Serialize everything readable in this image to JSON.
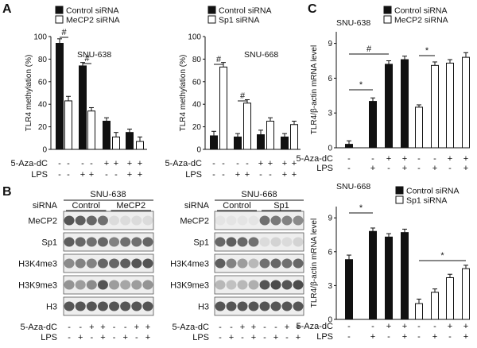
{
  "panel_labels": {
    "a": "A",
    "b": "B",
    "c": "C"
  },
  "colors": {
    "series1": "#111111",
    "series2": "#ffffff",
    "blot_band": "#3a3a3a",
    "blot_bg": "#eeeeee"
  },
  "chart_data": [
    {
      "id": "a_left",
      "type": "bar",
      "ylabel": "TLR4 methylation (%)",
      "ylim": [
        0,
        100
      ],
      "yticks": [
        "0",
        "20",
        "40",
        "60",
        "80",
        "100"
      ],
      "annotation": "SNU-638",
      "legend": [
        "Control siRNA",
        "MeCP2 siRNA"
      ],
      "series": [
        {
          "name": "Control siRNA",
          "values": [
            94,
            74,
            25,
            15
          ],
          "errors": [
            4,
            3,
            3,
            3
          ]
        },
        {
          "name": "MeCP2 siRNA",
          "values": [
            43,
            34,
            11,
            7
          ],
          "errors": [
            4,
            3,
            4,
            4
          ]
        }
      ],
      "row_labels": [
        "5-Aza-dC",
        "LPS"
      ],
      "signs": [
        [
          "-",
          "-",
          "-",
          "-",
          "+",
          "+",
          "+",
          "+"
        ],
        [
          "-",
          "-",
          "+",
          "+",
          "-",
          "-",
          "+",
          "+"
        ]
      ],
      "significance": [
        "#",
        "#"
      ]
    },
    {
      "id": "a_right",
      "type": "bar",
      "ylabel": "TLR4 methylation (%)",
      "ylim": [
        0,
        100
      ],
      "yticks": [
        "0",
        "20",
        "40",
        "60",
        "80",
        "100"
      ],
      "annotation": "SNU-668",
      "legend": [
        "Control siRNA",
        "Sp1 siRNA"
      ],
      "series": [
        {
          "name": "Control siRNA",
          "values": [
            12,
            11,
            13,
            11
          ],
          "errors": [
            4,
            3,
            4,
            3
          ]
        },
        {
          "name": "Sp1 siRNA",
          "values": [
            73,
            41,
            25,
            22
          ],
          "errors": [
            4,
            3,
            3,
            3
          ]
        }
      ],
      "row_labels": [
        "5-Aza-dC",
        "LPS"
      ],
      "signs": [
        [
          "-",
          "-",
          "-",
          "-",
          "+",
          "+",
          "+",
          "+"
        ],
        [
          "-",
          "-",
          "+",
          "+",
          "-",
          "-",
          "+",
          "+"
        ]
      ],
      "significance": [
        "#",
        "#"
      ]
    },
    {
      "id": "c_top",
      "type": "bar",
      "ylabel": "TLR4/β-actin mRNA level",
      "ylim": [
        0,
        10
      ],
      "yticks": [
        "0",
        "3",
        "6",
        "9"
      ],
      "annotation": "SNU-638",
      "legend": [
        "Control siRNA",
        "MeCP2 siRNA"
      ],
      "series": [
        {
          "name": "Control siRNA",
          "values": [
            0.3,
            4.0,
            7.2,
            7.6
          ],
          "errors": [
            0.3,
            0.3,
            0.3,
            0.3
          ]
        },
        {
          "name": "MeCP2 siRNA",
          "values": [
            3.5,
            7.1,
            7.3,
            7.8
          ],
          "errors": [
            0.2,
            0.3,
            0.3,
            0.4
          ]
        }
      ],
      "row_labels": [
        "5-Aza-dC",
        "LPS"
      ],
      "signs": [
        [
          "-",
          "-",
          "+",
          "+",
          "-",
          "-",
          "+",
          "+"
        ],
        [
          "-",
          "+",
          "-",
          "+",
          "-",
          "+",
          "-",
          "+"
        ]
      ],
      "significance": [
        "*",
        "#",
        "*"
      ]
    },
    {
      "id": "c_bottom",
      "type": "bar",
      "ylabel": "TLR4/β-actin mRNA level",
      "ylim": [
        0,
        10
      ],
      "yticks": [
        "0",
        "3",
        "6",
        "9"
      ],
      "annotation": "SNU-668",
      "legend": [
        "Control siRNA",
        "Sp1 siRNA"
      ],
      "series": [
        {
          "name": "Control siRNA",
          "values": [
            5.3,
            7.8,
            7.3,
            7.7
          ],
          "errors": [
            0.4,
            0.3,
            0.3,
            0.3
          ]
        },
        {
          "name": "Sp1 siRNA",
          "values": [
            1.4,
            2.4,
            3.7,
            4.5
          ],
          "errors": [
            0.4,
            0.3,
            0.3,
            0.3
          ]
        }
      ],
      "row_labels": [
        "5-Aza-dC",
        "LPS"
      ],
      "signs": [
        [
          "-",
          "-",
          "+",
          "+",
          "-",
          "-",
          "+",
          "+"
        ],
        [
          "-",
          "+",
          "-",
          "+",
          "-",
          "+",
          "-",
          "+"
        ]
      ],
      "significance": [
        "*",
        "*"
      ]
    }
  ],
  "blots": [
    {
      "id": "b_left",
      "cell_line": "SNU-638",
      "siRNA_label": "siRNA",
      "groups": [
        "Control",
        "MeCP2"
      ],
      "rows": [
        "MeCP2",
        "Sp1",
        "H3K4me3",
        "H3K9me3",
        "H3"
      ],
      "intensity": [
        [
          0.85,
          0.8,
          0.75,
          0.7,
          0.1,
          0.1,
          0.1,
          0.1
        ],
        [
          0.8,
          0.75,
          0.7,
          0.75,
          0.6,
          0.7,
          0.7,
          0.75
        ],
        [
          0.55,
          0.6,
          0.6,
          0.75,
          0.75,
          0.8,
          0.85,
          0.85
        ],
        [
          0.5,
          0.45,
          0.55,
          0.85,
          0.45,
          0.4,
          0.45,
          0.5
        ],
        [
          0.85,
          0.85,
          0.85,
          0.85,
          0.85,
          0.85,
          0.85,
          0.85
        ]
      ],
      "row_labels": [
        "5-Aza-dC",
        "LPS"
      ],
      "signs": [
        [
          "-",
          "-",
          "+",
          "+",
          "-",
          "-",
          "+",
          "+"
        ],
        [
          "-",
          "+",
          "-",
          "+",
          "-",
          "+",
          "-",
          "+"
        ]
      ]
    },
    {
      "id": "b_right",
      "cell_line": "SNU-668",
      "siRNA_label": "siRNA",
      "groups": [
        "Control",
        "Sp1"
      ],
      "rows": [
        "MeCP2",
        "Sp1",
        "H3K4me3",
        "H3K9me3",
        "H3"
      ],
      "intensity": [
        [
          0.05,
          0.05,
          0.05,
          0.05,
          0.7,
          0.65,
          0.6,
          0.55
        ],
        [
          0.75,
          0.8,
          0.75,
          0.7,
          0.1,
          0.15,
          0.1,
          0.15
        ],
        [
          0.8,
          0.6,
          0.45,
          0.3,
          0.7,
          0.75,
          0.7,
          0.75
        ],
        [
          0.3,
          0.25,
          0.3,
          0.35,
          0.85,
          0.9,
          0.85,
          0.9
        ],
        [
          0.85,
          0.85,
          0.85,
          0.85,
          0.85,
          0.85,
          0.85,
          0.85
        ]
      ],
      "row_labels": [
        "5-Aza-dC",
        "LPS"
      ],
      "signs": [
        [
          "-",
          "-",
          "+",
          "+",
          "-",
          "-",
          "+",
          "+"
        ],
        [
          "-",
          "+",
          "-",
          "+",
          "-",
          "+",
          "-",
          "+"
        ]
      ]
    }
  ]
}
